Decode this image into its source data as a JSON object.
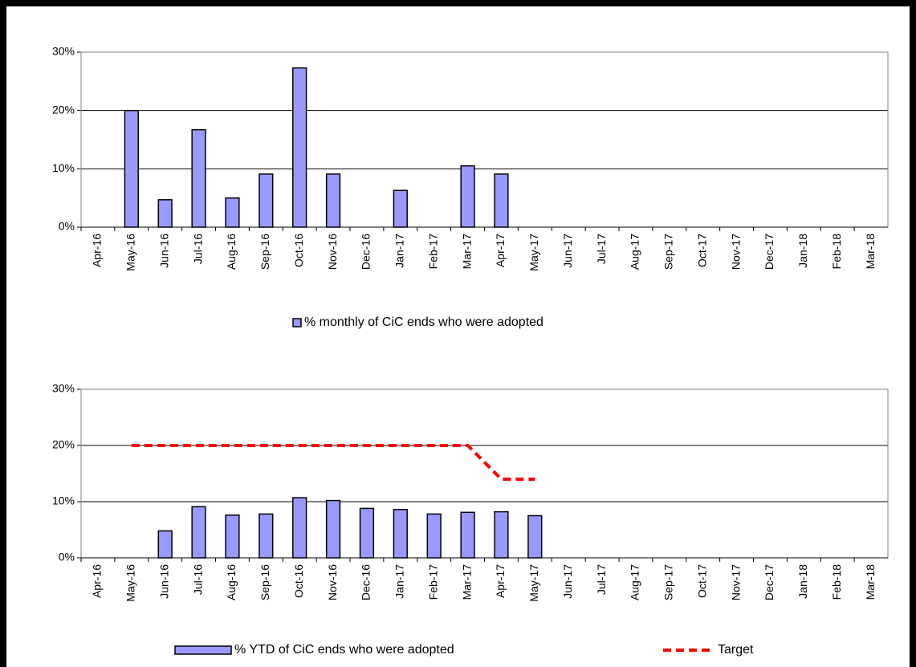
{
  "chart_data": [
    {
      "type": "bar",
      "categories": [
        "Apr-16",
        "May-16",
        "Jun-16",
        "Jul-16",
        "Aug-16",
        "Sep-16",
        "Oct-16",
        "Nov-16",
        "Dec-16",
        "Jan-17",
        "Feb-17",
        "Mar-17",
        "Apr-17",
        "May-17",
        "Jun-17",
        "Jul-17",
        "Aug-17",
        "Sep-17",
        "Oct-17",
        "Nov-17",
        "Dec-17",
        "Jan-18",
        "Feb-18",
        "Mar-18"
      ],
      "series": [
        {
          "name": "% monthly of CiC ends who were adopted",
          "type": "bar",
          "color": "#9999ff",
          "values": [
            null,
            20,
            4.7,
            16.7,
            5,
            9.1,
            27.3,
            9.1,
            null,
            6.3,
            null,
            10.5,
            9.1,
            null,
            null,
            null,
            null,
            null,
            null,
            null,
            null,
            null,
            null,
            null
          ]
        }
      ],
      "ylim": [
        0,
        30
      ],
      "yticks": [
        {
          "value": 0,
          "label": "0%"
        },
        {
          "value": 10,
          "label": "10%"
        },
        {
          "value": 20,
          "label": "20%"
        },
        {
          "value": 30,
          "label": "30%"
        }
      ],
      "grid": true,
      "legend": "bottom"
    },
    {
      "type": "combo",
      "categories": [
        "Apr-16",
        "May-16",
        "Jun-16",
        "Jul-16",
        "Aug-16",
        "Sep-16",
        "Oct-16",
        "Nov-16",
        "Dec-16",
        "Jan-17",
        "Feb-17",
        "Mar-17",
        "Apr-17",
        "May-17",
        "Jun-17",
        "Jul-17",
        "Aug-17",
        "Sep-17",
        "Oct-17",
        "Nov-17",
        "Dec-17",
        "Jan-18",
        "Feb-18",
        "Mar-18"
      ],
      "series": [
        {
          "name": "% YTD of CiC ends who were adopted",
          "type": "bar",
          "color": "#9999ff",
          "values": [
            null,
            null,
            4.8,
            9.1,
            7.6,
            7.8,
            10.7,
            10.2,
            8.8,
            8.6,
            7.8,
            8.1,
            8.2,
            7.5,
            null,
            null,
            null,
            null,
            null,
            null,
            null,
            null,
            null,
            null
          ]
        },
        {
          "name": "Target",
          "type": "line",
          "color": "#ff0000",
          "dashed": true,
          "values": [
            null,
            20,
            20,
            20,
            20,
            20,
            20,
            20,
            20,
            20,
            20,
            20,
            14,
            14,
            null,
            null,
            null,
            null,
            null,
            null,
            null,
            null,
            null,
            null
          ]
        }
      ],
      "ylim": [
        0,
        30
      ],
      "yticks": [
        {
          "value": 0,
          "label": "0%"
        },
        {
          "value": 10,
          "label": "10%"
        },
        {
          "value": 20,
          "label": "20%"
        },
        {
          "value": 30,
          "label": "30%"
        }
      ],
      "grid": true,
      "legend": "bottom"
    }
  ]
}
